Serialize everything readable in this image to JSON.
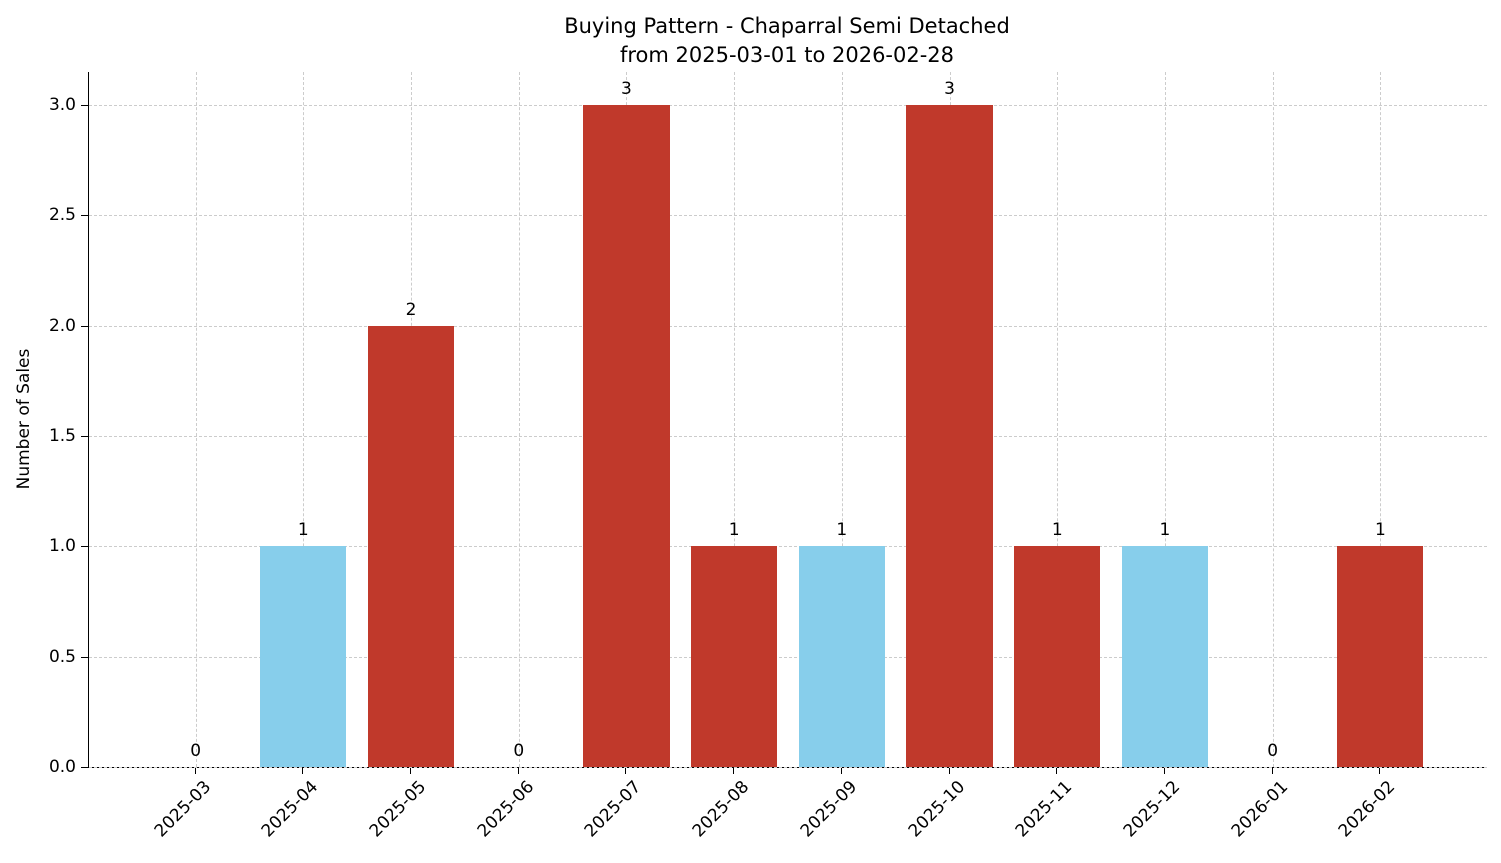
{
  "chart_data": {
    "type": "bar",
    "title": "Buying Pattern - Chaparral Semi Detached",
    "subtitle": "from 2025-03-01 to 2026-02-28",
    "xlabel": "",
    "ylabel": "Number of Sales",
    "categories": [
      "2025-03",
      "2025-04",
      "2025-05",
      "2025-06",
      "2025-07",
      "2025-08",
      "2025-09",
      "2025-10",
      "2025-11",
      "2025-12",
      "2026-01",
      "2026-02"
    ],
    "values": [
      0,
      1,
      2,
      0,
      3,
      1,
      1,
      3,
      1,
      1,
      0,
      1
    ],
    "value_labels": [
      "0",
      "1",
      "2",
      "0",
      "3",
      "1",
      "1",
      "3",
      "1",
      "1",
      "0",
      "1"
    ],
    "bar_colors": [
      "#c0392b",
      "#87ceeb",
      "#c0392b",
      "#c0392b",
      "#c0392b",
      "#c0392b",
      "#87ceeb",
      "#c0392b",
      "#c0392b",
      "#87ceeb",
      "#c0392b",
      "#c0392b"
    ],
    "colors": {
      "brick_red": "#c0392b",
      "sky_blue": "#87ceeb"
    },
    "yticks": [
      0.0,
      0.5,
      1.0,
      1.5,
      2.0,
      2.5,
      3.0
    ],
    "ytick_labels": [
      "0.0",
      "0.5",
      "1.0",
      "1.5",
      "2.0",
      "2.5",
      "3.0"
    ],
    "ylim": [
      0,
      3.15
    ],
    "xlim": [
      -0.99,
      11.99
    ],
    "bar_width": 0.8,
    "grid": true,
    "grid_style": "dashed",
    "x_tick_rotation": 45
  }
}
